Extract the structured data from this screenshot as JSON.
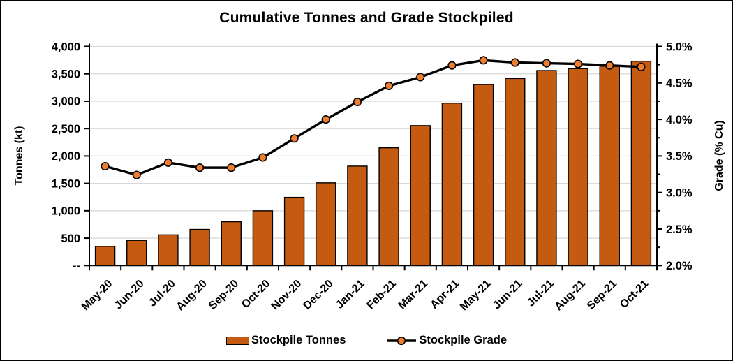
{
  "chart_data": {
    "type": "bar+line",
    "title": "Cumulative Tonnes and Grade Stockpiled",
    "ylabel_left": "Tonnes (kt)",
    "ylabel_right": "Grade (% Cu)",
    "categories": [
      "May-20",
      "Jun-20",
      "Jul-20",
      "Aug-20",
      "Sep-20",
      "Oct-20",
      "Nov-20",
      "Dec-20",
      "Jan-21",
      "Feb-21",
      "Mar-21",
      "Apr-21",
      "May-21",
      "Jun-21",
      "Jul-21",
      "Aug-21",
      "Sep-21",
      "Oct-21"
    ],
    "series": [
      {
        "name": "Stockpile Tonnes",
        "type": "bar",
        "axis": "left",
        "values": [
          350,
          460,
          560,
          660,
          800,
          1000,
          1245,
          1510,
          1815,
          2150,
          2555,
          2965,
          3305,
          3415,
          3560,
          3595,
          3640,
          3730
        ]
      },
      {
        "name": "Stockpile Grade",
        "type": "line",
        "axis": "right",
        "values": [
          3.36,
          3.24,
          3.41,
          3.34,
          3.34,
          3.48,
          3.74,
          4.0,
          4.24,
          4.46,
          4.58,
          4.74,
          4.81,
          4.78,
          4.77,
          4.76,
          4.74,
          4.72
        ]
      }
    ],
    "y_left": {
      "min": 0,
      "max": 4000,
      "tick_step": 500,
      "tick_labels": [
        "--",
        "500",
        "1,000",
        "1,500",
        "2,000",
        "2,500",
        "3,000",
        "3,500",
        "4,000"
      ]
    },
    "y_right": {
      "min": 2.0,
      "max": 5.0,
      "tick_step": 0.5,
      "minor_tick_step": 0.25,
      "tick_labels": [
        "2.0%",
        "2.5%",
        "3.0%",
        "3.5%",
        "4.0%",
        "4.5%",
        "5.0%"
      ]
    },
    "grid": "horizontal",
    "legend_position": "bottom"
  },
  "colors": {
    "bar_fill": "#C55A11",
    "bar_border": "#000000",
    "line": "#000000",
    "marker_fill": "#ED7D31",
    "marker_border": "#000000",
    "gridline": "#D9D9D9",
    "axis": "#000000",
    "text": "#000000",
    "background": "#FFFFFF"
  }
}
